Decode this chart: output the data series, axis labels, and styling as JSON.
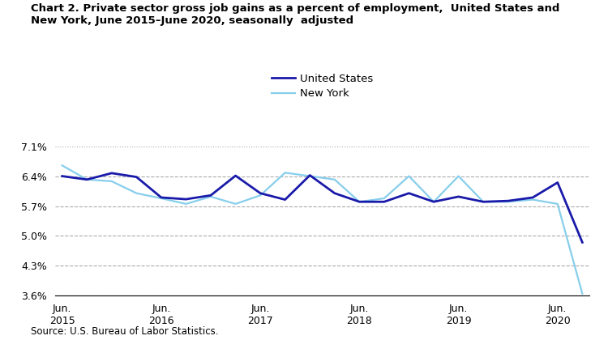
{
  "title": "Chart 2. Private sector gross job gains as a percent of employment,  United States and\nNew York, June 2015–June 2020, seasonally  adjusted",
  "source": "Source: U.S. Bureau of Labor Statistics.",
  "legend_labels": [
    "United States",
    "New York"
  ],
  "us_color": "#1a1aaa",
  "ny_color": "#87CEEB",
  "us_linewidth": 2.0,
  "ny_linewidth": 1.6,
  "x_labels": [
    "Jun.\n2015",
    "Jun.\n2016",
    "Jun.\n2017",
    "Jun.\n2018",
    "Jun.\n2019",
    "Jun.\n2020"
  ],
  "x_tick_positions": [
    0,
    4,
    8,
    12,
    16,
    20
  ],
  "yticks": [
    3.6,
    4.3,
    5.0,
    5.7,
    6.4,
    7.1
  ],
  "ylim": [
    3.6,
    7.1
  ],
  "us_values": [
    6.4,
    6.32,
    6.47,
    6.38,
    5.9,
    5.86,
    5.95,
    6.41,
    6.0,
    5.85,
    6.42,
    6.0,
    5.8,
    5.8,
    6.0,
    5.8,
    5.92,
    5.8,
    5.82,
    5.9,
    6.25,
    4.85
  ],
  "ny_values": [
    6.65,
    6.32,
    6.28,
    6.0,
    5.88,
    5.75,
    5.92,
    5.75,
    5.95,
    6.48,
    6.4,
    6.32,
    5.8,
    5.88,
    6.4,
    5.8,
    6.4,
    5.8,
    5.8,
    5.85,
    5.75,
    3.65
  ],
  "background_color": "#ffffff",
  "grid_color": "#aaaaaa",
  "grid_linestyle": "--",
  "grid_linewidth": 0.8,
  "top_grid_linestyle": ":"
}
